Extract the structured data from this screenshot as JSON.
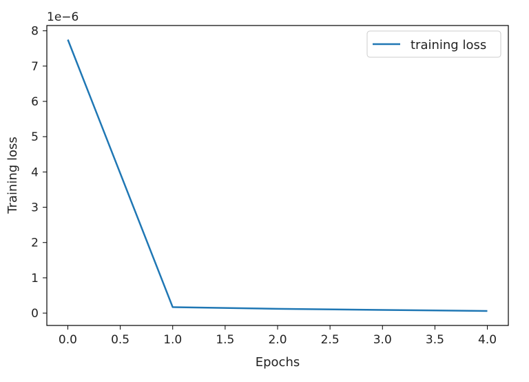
{
  "chart_data": {
    "type": "line",
    "xlabel": "Epochs",
    "ylabel": "Training loss",
    "y_offset_label": "1e−6",
    "xlim": [
      -0.2,
      4.2
    ],
    "ylim": [
      -0.35,
      8.15
    ],
    "x_ticks": [
      0.0,
      0.5,
      1.0,
      1.5,
      2.0,
      2.5,
      3.0,
      3.5,
      4.0
    ],
    "x_tick_labels": [
      "0.0",
      "0.5",
      "1.0",
      "1.5",
      "2.0",
      "2.5",
      "3.0",
      "3.5",
      "4.0"
    ],
    "y_ticks": [
      0,
      1,
      2,
      3,
      4,
      5,
      6,
      7,
      8
    ],
    "y_tick_labels": [
      "0",
      "1",
      "2",
      "3",
      "4",
      "5",
      "6",
      "7",
      "8"
    ],
    "grid": false,
    "legend_position": "top-right",
    "series": [
      {
        "name": "training loss",
        "color": "#1f77b4",
        "x": [
          0,
          1,
          2,
          3,
          4
        ],
        "y": [
          7.75,
          0.17,
          0.12,
          0.09,
          0.06
        ]
      }
    ]
  }
}
